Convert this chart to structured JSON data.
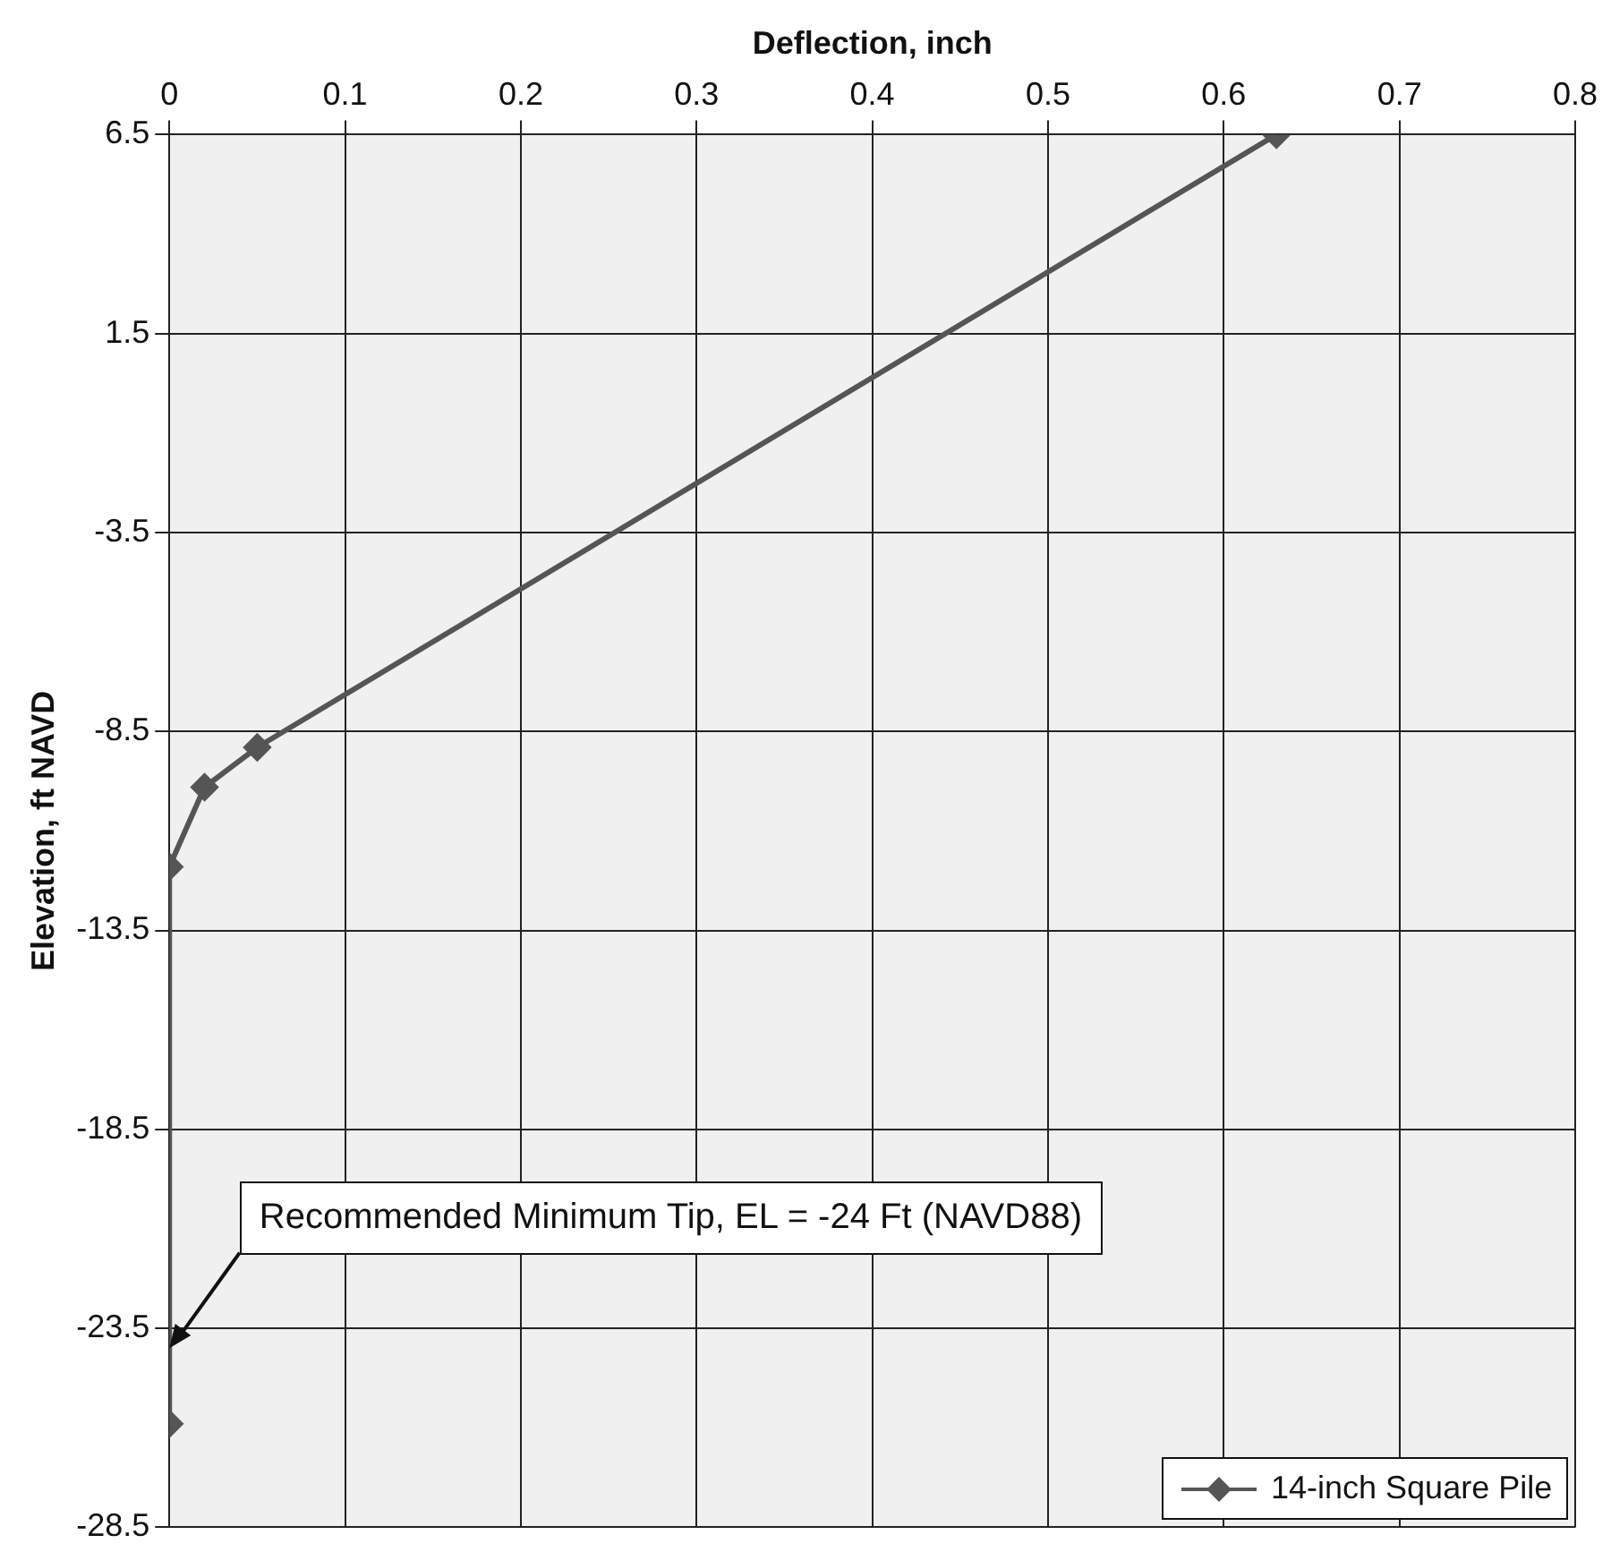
{
  "chart_data": {
    "type": "line",
    "xlabel": "Deflection, inch",
    "ylabel": "Elevation, ft NAVD",
    "xlim": [
      0,
      0.8
    ],
    "xticks": [
      0,
      0.1,
      0.2,
      0.3,
      0.4,
      0.5,
      0.6,
      0.7,
      0.8
    ],
    "ylim": [
      -28.5,
      6.5
    ],
    "yticks": [
      6.5,
      1.5,
      -3.5,
      -8.5,
      -13.5,
      -18.5,
      -23.5,
      -28.5
    ],
    "series": [
      {
        "name": "14-inch Square Pile",
        "color": "#555555",
        "x": [
          0.63,
          0.05,
          0.02,
          0,
          0
        ],
        "values": [
          6.5,
          -8.9,
          -9.9,
          -11.9,
          -25.9
        ]
      }
    ],
    "annotations": [
      {
        "text": "Recommended Minimum Tip, EL = -24 Ft (NAVD88)",
        "x": 0,
        "y": -24
      }
    ],
    "grid": true,
    "legend": "bottom right",
    "marker": "diamond"
  }
}
